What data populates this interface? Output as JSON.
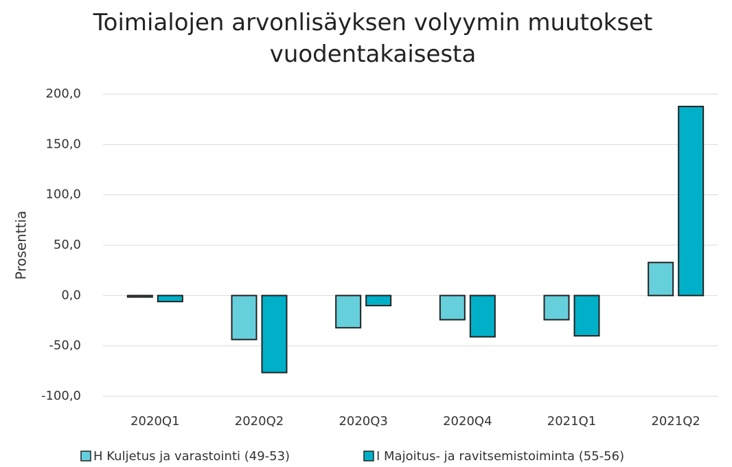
{
  "chart_data": {
    "type": "bar",
    "title": "Toimialojen arvonlisäyksen volyymin muutokset vuodentakaisesta",
    "ylabel": "Prosenttia",
    "categories": [
      "2020Q1",
      "2020Q2",
      "2020Q3",
      "2020Q4",
      "2021Q1",
      "2021Q2"
    ],
    "series": [
      {
        "name": "H Kuljetus ja varastointi (49-53)",
        "color": "#66cfdc",
        "values": [
          -1.5,
          -43.7,
          -32,
          -24,
          -24,
          32.8
        ]
      },
      {
        "name": "I Majoitus- ja ravitsemistoiminta (55-56)",
        "color": "#00b0c8",
        "values": [
          -6,
          -76.5,
          -10,
          -41,
          -40,
          187.7
        ]
      }
    ],
    "ylim": [
      -100,
      200
    ],
    "yticks": [
      {
        "value": -100,
        "label": "-100,0"
      },
      {
        "value": -50,
        "label": "-50,0"
      },
      {
        "value": 0,
        "label": "0,0"
      },
      {
        "value": 50,
        "label": "50,0"
      },
      {
        "value": 100,
        "label": "100,0"
      },
      {
        "value": 150,
        "label": "150,0"
      },
      {
        "value": 200,
        "label": "200,0"
      }
    ],
    "grid": true,
    "legend": "bottom"
  }
}
